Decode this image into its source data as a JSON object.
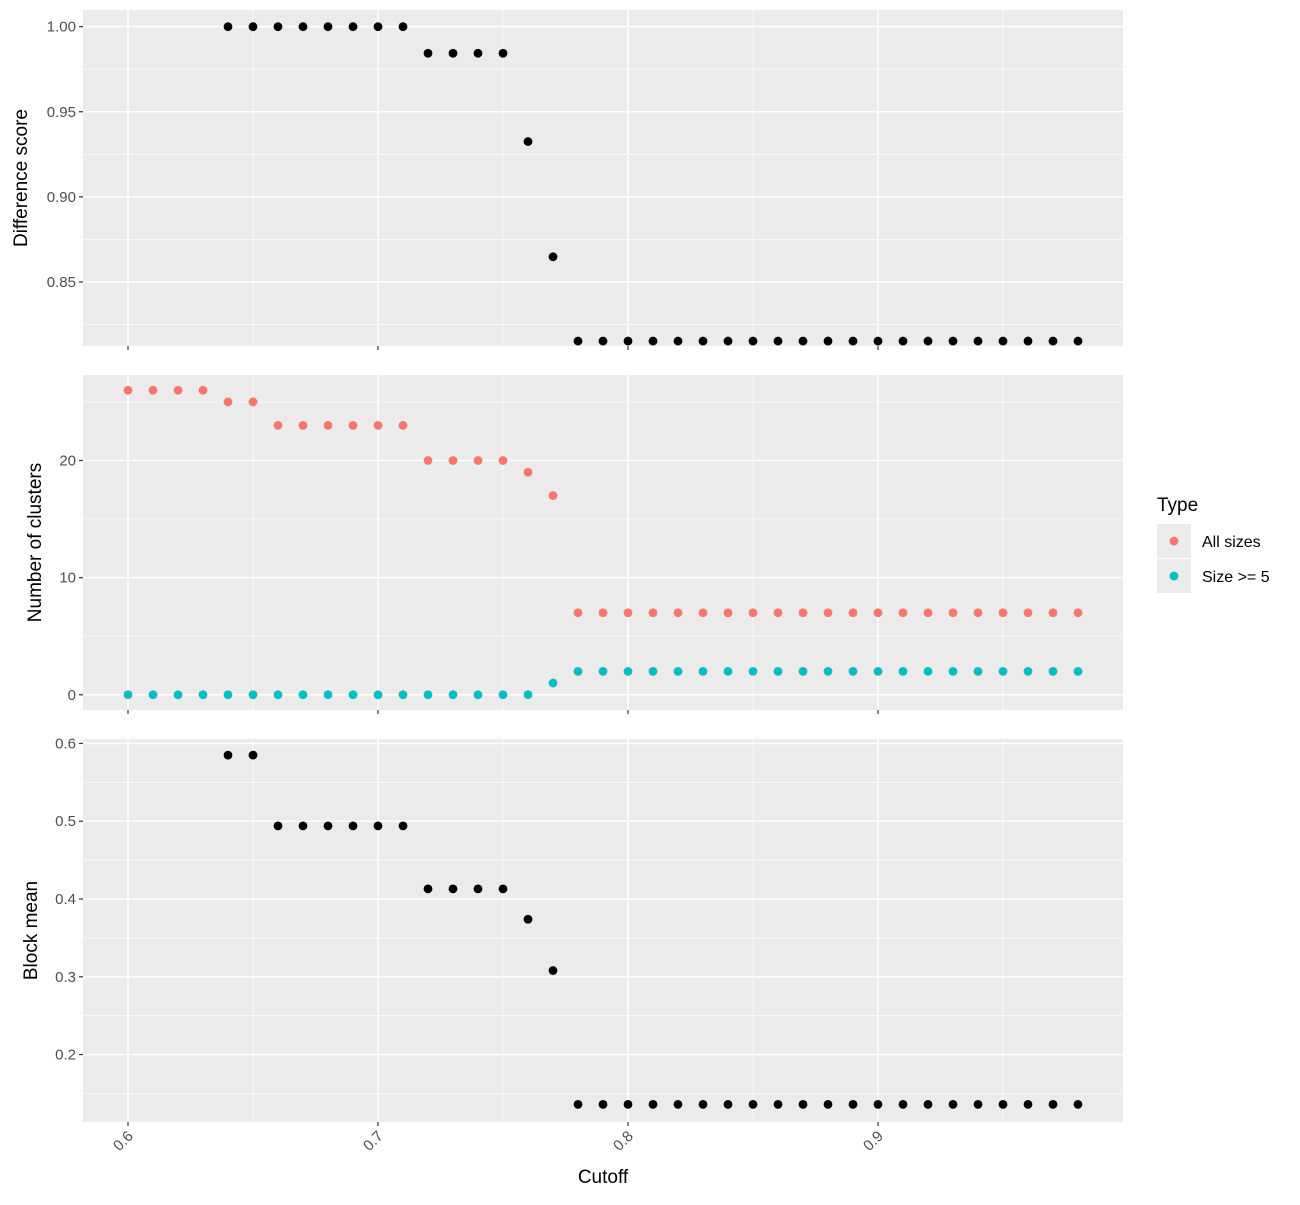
{
  "chart_data": {
    "type": "scatter",
    "xlabel": "Cutoff",
    "xlim": [
      0.582,
      0.998
    ],
    "x_ticks": [
      "0.6",
      "0.7",
      "0.8",
      "0.9"
    ],
    "x_tick_values": [
      0.6,
      0.7,
      0.8,
      0.9
    ],
    "legend": {
      "title": "Type",
      "placement": "right",
      "items": [
        {
          "label": "All sizes",
          "color": "#F8766D"
        },
        {
          "label": "Size >= 5",
          "color": "#00BFC4"
        }
      ]
    },
    "background_color": "#EBEBEB",
    "grid": true,
    "panels": [
      {
        "ylabel": "Difference score",
        "ylim": [
          0.8124,
          1.0098
        ],
        "y_ticks": [
          "0.85",
          "0.90",
          "0.95",
          "1.00"
        ],
        "y_tick_values": [
          0.85,
          0.9,
          0.95,
          1.0
        ],
        "series": [
          {
            "color": "#000000",
            "x": [
              0.64,
              0.65,
              0.66,
              0.67,
              0.68,
              0.69,
              0.7,
              0.71,
              0.72,
              0.73,
              0.74,
              0.75,
              0.76,
              0.77,
              0.78,
              0.79,
              0.8,
              0.81,
              0.82,
              0.83,
              0.84,
              0.85,
              0.86,
              0.87,
              0.88,
              0.89,
              0.9,
              0.91,
              0.92,
              0.93,
              0.94,
              0.95,
              0.96,
              0.97,
              0.98
            ],
            "y": [
              1.0,
              1.0,
              1.0,
              1.0,
              1.0,
              1.0,
              1.0,
              1.0,
              0.9844,
              0.9844,
              0.9844,
              0.9844,
              0.9325,
              0.8648,
              0.8153,
              0.8153,
              0.8153,
              0.8153,
              0.8153,
              0.8153,
              0.8153,
              0.8153,
              0.8153,
              0.8153,
              0.8153,
              0.8153,
              0.8153,
              0.8153,
              0.8153,
              0.8153,
              0.8153,
              0.8153,
              0.8153,
              0.8153,
              0.8153
            ]
          }
        ]
      },
      {
        "ylabel": "Number of clusters",
        "ylim": [
          -1.3,
          27.3
        ],
        "y_ticks": [
          "0",
          "10",
          "20"
        ],
        "y_tick_values": [
          0,
          10,
          20
        ],
        "series": [
          {
            "name": "All sizes",
            "color": "#F8766D",
            "x": [
              0.6,
              0.61,
              0.62,
              0.63,
              0.64,
              0.65,
              0.66,
              0.67,
              0.68,
              0.69,
              0.7,
              0.71,
              0.72,
              0.73,
              0.74,
              0.75,
              0.76,
              0.77,
              0.78,
              0.79,
              0.8,
              0.81,
              0.82,
              0.83,
              0.84,
              0.85,
              0.86,
              0.87,
              0.88,
              0.89,
              0.9,
              0.91,
              0.92,
              0.93,
              0.94,
              0.95,
              0.96,
              0.97,
              0.98
            ],
            "y": [
              26,
              26,
              26,
              26,
              25,
              25,
              23,
              23,
              23,
              23,
              23,
              23,
              20,
              20,
              20,
              20,
              19,
              17,
              7,
              7,
              7,
              7,
              7,
              7,
              7,
              7,
              7,
              7,
              7,
              7,
              7,
              7,
              7,
              7,
              7,
              7,
              7,
              7,
              7
            ]
          },
          {
            "name": "Size >= 5",
            "color": "#00BFC4",
            "x": [
              0.6,
              0.61,
              0.62,
              0.63,
              0.64,
              0.65,
              0.66,
              0.67,
              0.68,
              0.69,
              0.7,
              0.71,
              0.72,
              0.73,
              0.74,
              0.75,
              0.76,
              0.77,
              0.78,
              0.79,
              0.8,
              0.81,
              0.82,
              0.83,
              0.84,
              0.85,
              0.86,
              0.87,
              0.88,
              0.89,
              0.9,
              0.91,
              0.92,
              0.93,
              0.94,
              0.95,
              0.96,
              0.97,
              0.98
            ],
            "y": [
              0,
              0,
              0,
              0,
              0,
              0,
              0,
              0,
              0,
              0,
              0,
              0,
              0,
              0,
              0,
              0,
              0,
              1,
              2,
              2,
              2,
              2,
              2,
              2,
              2,
              2,
              2,
              2,
              2,
              2,
              2,
              2,
              2,
              2,
              2,
              2,
              2,
              2,
              2
            ]
          }
        ]
      },
      {
        "ylabel": "Block mean",
        "ylim": [
          0.1133,
          0.6057
        ],
        "y_ticks": [
          "0.2",
          "0.3",
          "0.4",
          "0.5",
          "0.6"
        ],
        "y_tick_values": [
          0.2,
          0.3,
          0.4,
          0.5,
          0.6
        ],
        "series": [
          {
            "color": "#000000",
            "x": [
              0.64,
              0.65,
              0.66,
              0.67,
              0.68,
              0.69,
              0.7,
              0.71,
              0.72,
              0.73,
              0.74,
              0.75,
              0.76,
              0.77,
              0.78,
              0.79,
              0.8,
              0.81,
              0.82,
              0.83,
              0.84,
              0.85,
              0.86,
              0.87,
              0.88,
              0.89,
              0.9,
              0.91,
              0.92,
              0.93,
              0.94,
              0.95,
              0.96,
              0.97,
              0.98
            ],
            "y": [
              0.585,
              0.585,
              0.494,
              0.494,
              0.494,
              0.494,
              0.494,
              0.494,
              0.413,
              0.413,
              0.413,
              0.413,
              0.374,
              0.308,
              0.136,
              0.136,
              0.136,
              0.136,
              0.136,
              0.136,
              0.136,
              0.136,
              0.136,
              0.136,
              0.136,
              0.136,
              0.136,
              0.136,
              0.136,
              0.136,
              0.136,
              0.136,
              0.136,
              0.136,
              0.136
            ]
          }
        ]
      }
    ]
  }
}
